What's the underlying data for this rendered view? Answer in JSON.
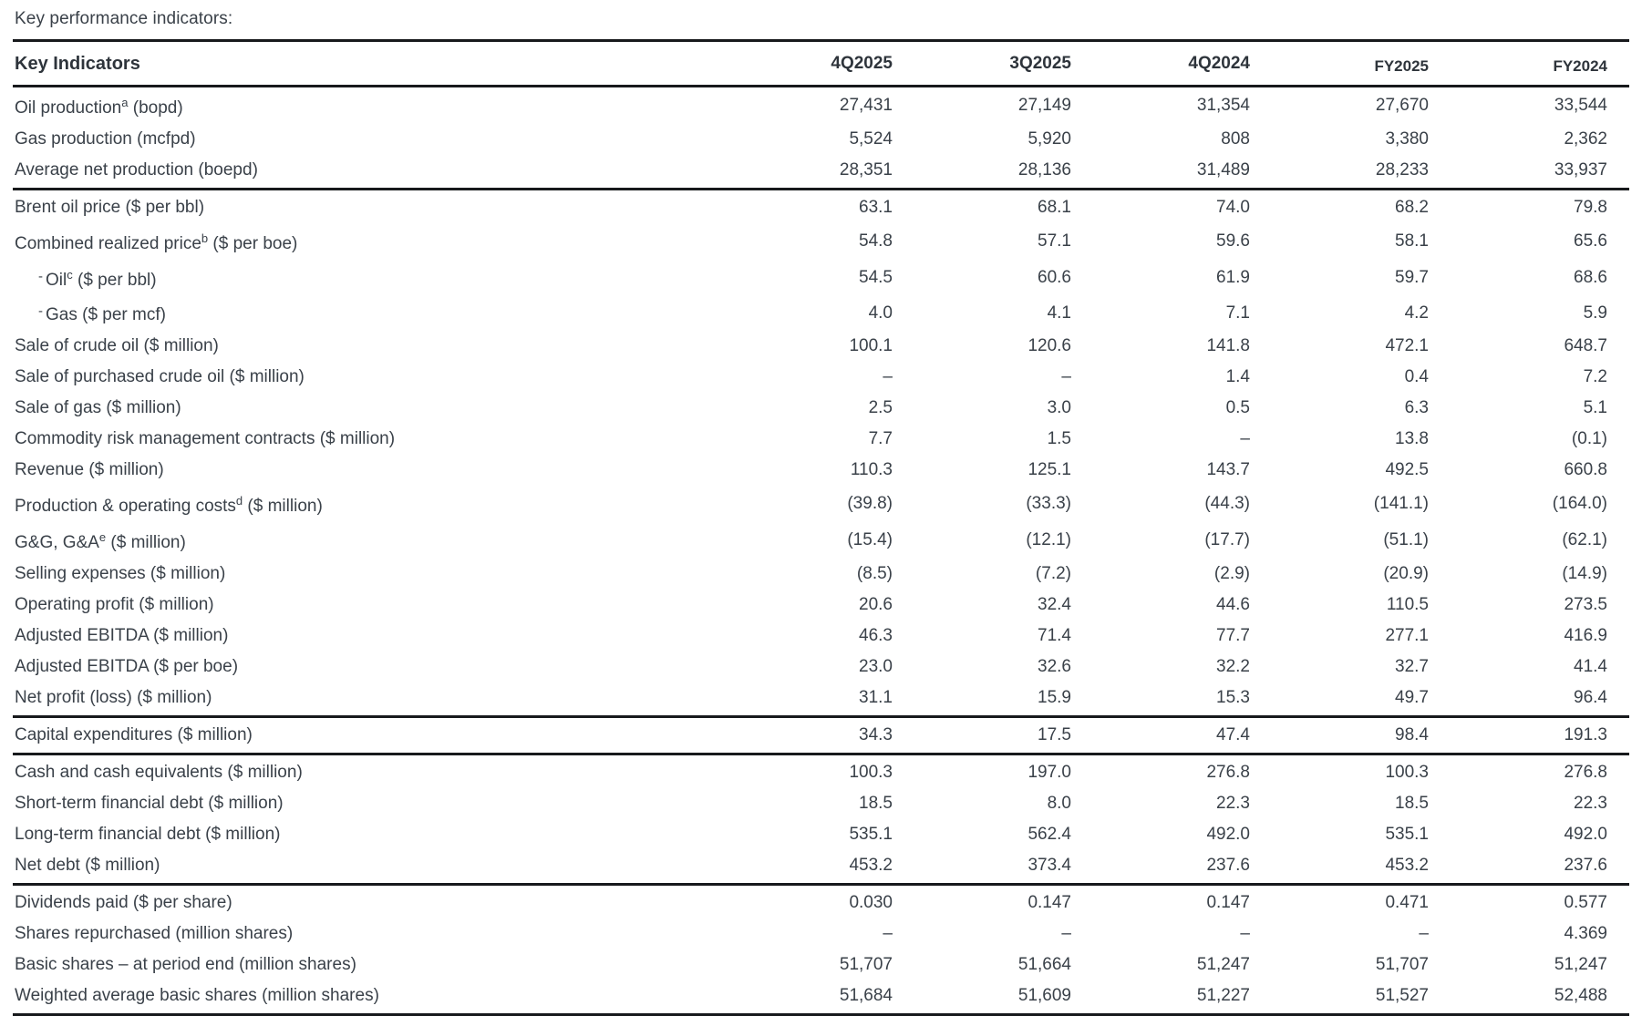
{
  "page_title": "Key performance indicators:",
  "table": {
    "header_label": "Key Indicators",
    "columns": [
      "4Q2025",
      "3Q2025",
      "4Q2024",
      "FY2025",
      "FY2024"
    ],
    "rows": [
      {
        "pre": "Oil production",
        "sup": "a",
        "post": " (bopd)",
        "values": [
          "27,431",
          "27,149",
          "31,354",
          "27,670",
          "33,544"
        ]
      },
      {
        "pre": "Gas production (mcfpd)",
        "values": [
          "5,524",
          "5,920",
          "808",
          "3,380",
          "2,362"
        ]
      },
      {
        "pre": "Average net production (boepd)",
        "values": [
          "28,351",
          "28,136",
          "31,489",
          "28,233",
          "33,937"
        ],
        "sep": true
      },
      {
        "pre": "Brent oil price ($ per bbl)",
        "values": [
          "63.1",
          "68.1",
          "74.0",
          "68.2",
          "79.8"
        ]
      },
      {
        "pre": "Combined realized price",
        "sup": "b",
        "post": " ($ per boe)",
        "values": [
          "54.8",
          "57.1",
          "59.6",
          "58.1",
          "65.6"
        ]
      },
      {
        "pre": "Oil",
        "sup": "c",
        "post": " ($ per bbl)",
        "indent": true,
        "prefix": "-",
        "values": [
          "54.5",
          "60.6",
          "61.9",
          "59.7",
          "68.6"
        ]
      },
      {
        "pre": "Gas ($ per mcf)",
        "indent": true,
        "prefix": "-",
        "values": [
          "4.0",
          "4.1",
          "7.1",
          "4.2",
          "5.9"
        ]
      },
      {
        "pre": "Sale of crude oil ($ million)",
        "values": [
          "100.1",
          "120.6",
          "141.8",
          "472.1",
          "648.7"
        ]
      },
      {
        "pre": "Sale of purchased crude oil ($ million)",
        "values": [
          "–",
          "–",
          "1.4",
          "0.4",
          "7.2"
        ]
      },
      {
        "pre": "Sale of gas ($ million)",
        "values": [
          "2.5",
          "3.0",
          "0.5",
          "6.3",
          "5.1"
        ]
      },
      {
        "pre": "Commodity risk management contracts ($ million)",
        "values": [
          "7.7",
          "1.5",
          "–",
          "13.8",
          "(0.1)"
        ]
      },
      {
        "pre": "Revenue ($ million)",
        "values": [
          "110.3",
          "125.1",
          "143.7",
          "492.5",
          "660.8"
        ]
      },
      {
        "pre": "Production & operating costs",
        "sup": "d",
        "post": " ($ million)",
        "values": [
          "(39.8)",
          "(33.3)",
          "(44.3)",
          "(141.1)",
          "(164.0)"
        ]
      },
      {
        "pre": "G&G, G&A",
        "sup": "e",
        "post": " ($ million)",
        "values": [
          "(15.4)",
          "(12.1)",
          "(17.7)",
          "(51.1)",
          "(62.1)"
        ]
      },
      {
        "pre": "Selling expenses ($ million)",
        "values": [
          "(8.5)",
          "(7.2)",
          "(2.9)",
          "(20.9)",
          "(14.9)"
        ]
      },
      {
        "pre": "Operating profit ($ million)",
        "values": [
          "20.6",
          "32.4",
          "44.6",
          "110.5",
          "273.5"
        ]
      },
      {
        "pre": "Adjusted EBITDA ($ million)",
        "values": [
          "46.3",
          "71.4",
          "77.7",
          "277.1",
          "416.9"
        ]
      },
      {
        "pre": "Adjusted EBITDA ($ per boe)",
        "values": [
          "23.0",
          "32.6",
          "32.2",
          "32.7",
          "41.4"
        ]
      },
      {
        "pre": "Net profit (loss) ($ million)",
        "values": [
          "31.1",
          "15.9",
          "15.3",
          "49.7",
          "96.4"
        ],
        "sep": true
      },
      {
        "pre": "Capital expenditures ($ million)",
        "values": [
          "34.3",
          "17.5",
          "47.4",
          "98.4",
          "191.3"
        ],
        "sep": true
      },
      {
        "pre": "Cash and cash equivalents ($ million)",
        "values": [
          "100.3",
          "197.0",
          "276.8",
          "100.3",
          "276.8"
        ]
      },
      {
        "pre": "Short-term financial debt ($ million)",
        "values": [
          "18.5",
          "8.0",
          "22.3",
          "18.5",
          "22.3"
        ]
      },
      {
        "pre": "Long-term financial debt ($ million)",
        "values": [
          "535.1",
          "562.4",
          "492.0",
          "535.1",
          "492.0"
        ]
      },
      {
        "pre": "Net debt ($ million)",
        "values": [
          "453.2",
          "373.4",
          "237.6",
          "453.2",
          "237.6"
        ],
        "sep": true
      },
      {
        "pre": "Dividends paid ($ per share)",
        "values": [
          "0.030",
          "0.147",
          "0.147",
          "0.471",
          "0.577"
        ]
      },
      {
        "pre": "Shares repurchased (million shares)",
        "values": [
          "–",
          "–",
          "–",
          "–",
          "4.369"
        ]
      },
      {
        "pre": "Basic shares – at period end (million shares)",
        "values": [
          "51,707",
          "51,664",
          "51,247",
          "51,707",
          "51,247"
        ]
      },
      {
        "pre": "Weighted average basic shares (million shares)",
        "values": [
          "51,684",
          "51,609",
          "51,227",
          "51,527",
          "52,488"
        ],
        "sep": true
      }
    ]
  }
}
